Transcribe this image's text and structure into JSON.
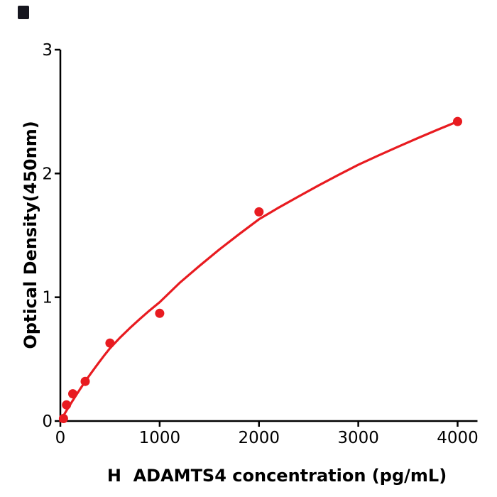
{
  "figure": {
    "background": "#ffffff",
    "corner_mark_color": "#16161f"
  },
  "chart_data": {
    "type": "scatter",
    "title": "",
    "xlabel": "H  ADAMTS4 concentration (pg/mL)",
    "ylabel": "Optical Density(450nm)",
    "x_ticks": [
      0,
      1000,
      2000,
      3000,
      4000
    ],
    "y_ticks": [
      0,
      1,
      2,
      3
    ],
    "xlim": [
      0,
      4200
    ],
    "ylim": [
      0,
      3
    ],
    "grid": false,
    "legend": "none",
    "axis_color": "#000000",
    "point_color": "#e81b20",
    "curve_color": "#e81b20",
    "series": [
      {
        "name": "standard-data-points",
        "kind": "scatter",
        "color": "#e81b20",
        "marker": "circle",
        "points": [
          [
            31.25,
            0.02
          ],
          [
            62.5,
            0.13
          ],
          [
            125,
            0.22
          ],
          [
            250,
            0.32
          ],
          [
            500,
            0.63
          ],
          [
            1000,
            0.87
          ],
          [
            2000,
            1.69
          ],
          [
            4000,
            2.42
          ]
        ]
      },
      {
        "name": "fit-curve",
        "kind": "line",
        "color": "#e81b20",
        "model": "4-parameter standard-curve fit through (0,0) to (4000,2.42)",
        "points": [
          [
            0,
            0
          ],
          [
            50,
            0.068
          ],
          [
            100,
            0.134
          ],
          [
            150,
            0.198
          ],
          [
            200,
            0.26
          ],
          [
            250,
            0.32
          ],
          [
            300,
            0.377
          ],
          [
            350,
            0.432
          ],
          [
            400,
            0.485
          ],
          [
            450,
            0.538
          ],
          [
            500,
            0.588
          ],
          [
            600,
            0.673
          ],
          [
            700,
            0.751
          ],
          [
            800,
            0.824
          ],
          [
            900,
            0.894
          ],
          [
            1000,
            0.96
          ],
          [
            1200,
            1.115
          ],
          [
            1400,
            1.253
          ],
          [
            1600,
            1.385
          ],
          [
            1800,
            1.51
          ],
          [
            2000,
            1.63
          ],
          [
            2200,
            1.725
          ],
          [
            2400,
            1.815
          ],
          [
            2600,
            1.903
          ],
          [
            2800,
            1.988
          ],
          [
            3000,
            2.07
          ],
          [
            3200,
            2.144
          ],
          [
            3400,
            2.216
          ],
          [
            3600,
            2.286
          ],
          [
            3800,
            2.354
          ],
          [
            4000,
            2.42
          ]
        ]
      }
    ]
  }
}
